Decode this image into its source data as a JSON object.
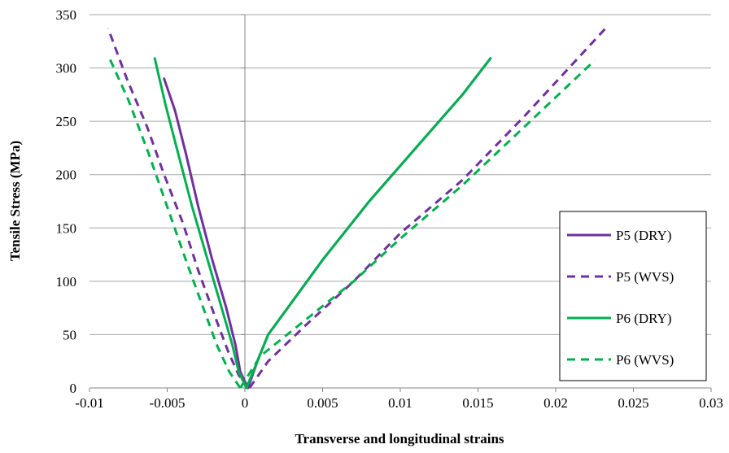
{
  "chart_data": {
    "type": "line",
    "xlabel": "Transverse and longitudinal strains",
    "ylabel": "Tensile Stress (MPa)",
    "xlim": [
      -0.01,
      0.03
    ],
    "ylim": [
      0,
      350
    ],
    "xticks": [
      -0.01,
      -0.005,
      0,
      0.005,
      0.01,
      0.015,
      0.02,
      0.025,
      0.03
    ],
    "xtick_labels": [
      "-0.01",
      "-0.005",
      "0",
      "0.005",
      "0.01",
      "0.015",
      "0.02",
      "0.025",
      "0.03"
    ],
    "yticks": [
      0,
      50,
      100,
      150,
      200,
      250,
      300,
      350
    ],
    "ytick_labels": [
      "0",
      "50",
      "100",
      "150",
      "200",
      "250",
      "300",
      "350"
    ],
    "grid": "horizontal",
    "legend_position": "right",
    "series": [
      {
        "name": "P5 (DRY)",
        "color": "#7030a0",
        "dash": "solid",
        "branches": [
          [
            [
              0.0002,
              0
            ],
            [
              -0.0003,
              15
            ],
            [
              -0.0006,
              40
            ],
            [
              -0.0012,
              75
            ],
            [
              -0.0021,
              120
            ],
            [
              -0.003,
              170
            ],
            [
              -0.0038,
              220
            ],
            [
              -0.0045,
              260
            ],
            [
              -0.0052,
              290
            ]
          ],
          [
            [
              0.0002,
              0
            ],
            [
              0.0008,
              25
            ],
            [
              0.0015,
              50
            ],
            [
              0.003,
              80
            ],
            [
              0.005,
              120
            ],
            [
              0.008,
              175
            ],
            [
              0.011,
              225
            ],
            [
              0.014,
              275
            ],
            [
              0.0158,
              309
            ]
          ]
        ]
      },
      {
        "name": "P5 (WVS)",
        "color": "#7030a0",
        "dash": "dashed",
        "branches": [
          [
            [
              0.0003,
              0
            ],
            [
              -0.0004,
              12
            ],
            [
              -0.0011,
              35
            ],
            [
              -0.002,
              70
            ],
            [
              -0.003,
              110
            ],
            [
              -0.004,
              155
            ],
            [
              -0.0052,
              200
            ],
            [
              -0.0063,
              245
            ],
            [
              -0.0076,
              290
            ],
            [
              -0.0088,
              337
            ]
          ],
          [
            [
              0.0003,
              0
            ],
            [
              0.0015,
              25
            ],
            [
              0.004,
              60
            ],
            [
              0.007,
              100
            ],
            [
              0.01,
              145
            ],
            [
              0.014,
              195
            ],
            [
              0.018,
              255
            ],
            [
              0.0232,
              337
            ]
          ]
        ]
      },
      {
        "name": "P6 (DRY)",
        "color": "#00b050",
        "dash": "solid",
        "branches": [
          [
            [
              0.0001,
              0
            ],
            [
              -0.0004,
              15
            ],
            [
              -0.0008,
              40
            ],
            [
              -0.0015,
              75
            ],
            [
              -0.0024,
              120
            ],
            [
              -0.0034,
              170
            ],
            [
              -0.0043,
              220
            ],
            [
              -0.0051,
              265
            ],
            [
              -0.0058,
              309
            ]
          ],
          [
            [
              0.0001,
              0
            ],
            [
              0.0008,
              25
            ],
            [
              0.0015,
              50
            ],
            [
              0.003,
              80
            ],
            [
              0.005,
              120
            ],
            [
              0.008,
              175
            ],
            [
              0.011,
              225
            ],
            [
              0.014,
              275
            ],
            [
              0.0158,
              309
            ]
          ]
        ]
      },
      {
        "name": "P6 (WVS)",
        "color": "#00b050",
        "dash": "dashed",
        "branches": [
          [
            [
              -0.0003,
              0
            ],
            [
              -0.001,
              15
            ],
            [
              -0.0018,
              40
            ],
            [
              -0.0028,
              80
            ],
            [
              -0.0038,
              120
            ],
            [
              -0.005,
              170
            ],
            [
              -0.0062,
              220
            ],
            [
              -0.0075,
              270
            ],
            [
              -0.0088,
              312
            ]
          ],
          [
            [
              -0.0003,
              0
            ],
            [
              0.001,
              30
            ],
            [
              0.004,
              65
            ],
            [
              0.007,
              100
            ],
            [
              0.01,
              140
            ],
            [
              0.014,
              190
            ],
            [
              0.018,
              245
            ],
            [
              0.0225,
              307
            ]
          ]
        ]
      }
    ]
  }
}
